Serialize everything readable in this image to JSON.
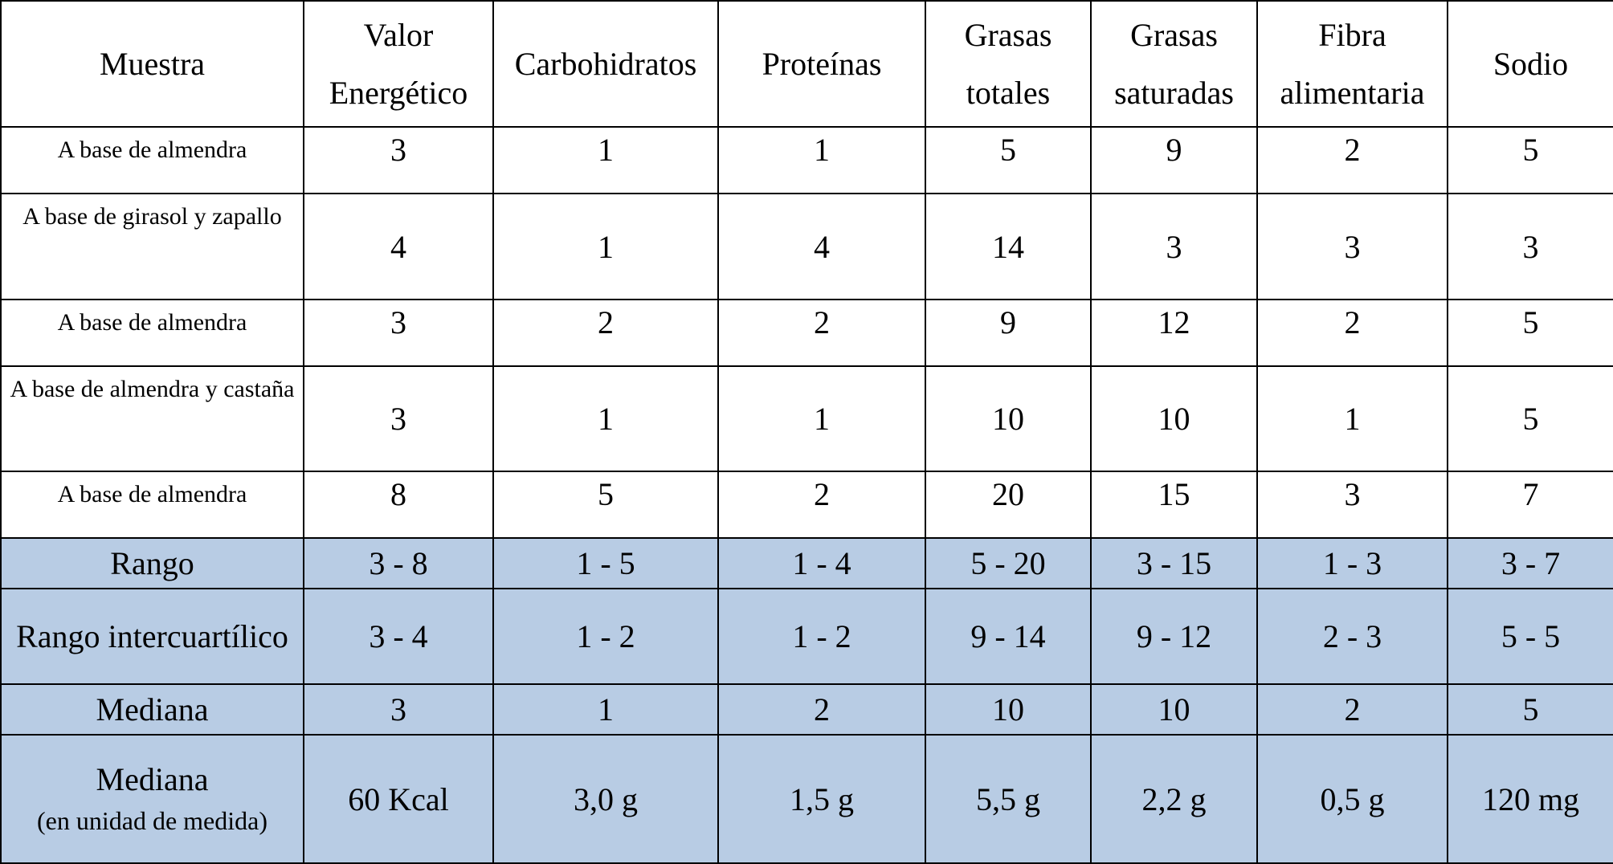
{
  "table": {
    "headers": [
      "Muestra",
      "Valor Energético",
      "Carbohidratos",
      "Proteínas",
      "Grasas totales",
      "Grasas saturadas",
      "Fibra alimentaria",
      "Sodio"
    ],
    "rows": [
      {
        "sample": "A base de almendra",
        "values": [
          "3",
          "1",
          "1",
          "5",
          "9",
          "2",
          "5"
        ]
      },
      {
        "sample": "A base de girasol y zapallo",
        "values": [
          "4",
          "1",
          "4",
          "14",
          "3",
          "3",
          "3"
        ]
      },
      {
        "sample": "A base de almendra",
        "values": [
          "3",
          "2",
          "2",
          "9",
          "12",
          "2",
          "5"
        ]
      },
      {
        "sample": "A base de almendra y castaña",
        "values": [
          "3",
          "1",
          "1",
          "10",
          "10",
          "1",
          "5"
        ]
      },
      {
        "sample": "A base de almendra",
        "values": [
          "8",
          "5",
          "2",
          "20",
          "15",
          "3",
          "7"
        ]
      }
    ],
    "summary": [
      {
        "label": "Rango",
        "values": [
          "3 - 8",
          "1 - 5",
          "1 - 4",
          "5 - 20",
          "3 - 15",
          "1 - 3",
          "3 - 7"
        ]
      },
      {
        "label": "Rango intercuartílico",
        "values": [
          "3 - 4",
          "1 - 2",
          "1 - 2",
          "9 - 14",
          "9 - 12",
          "2 - 3",
          "5 - 5"
        ]
      },
      {
        "label": "Mediana",
        "values": [
          "3",
          "1",
          "2",
          "10",
          "10",
          "2",
          "5"
        ]
      },
      {
        "label": "Mediana",
        "sublabel": "(en unidad de medida)",
        "values": [
          "60 Kcal",
          "3,0 g",
          "1,5 g",
          "5,5 g",
          "2,2 g",
          "0,5 g",
          "120 mg"
        ]
      }
    ],
    "colors": {
      "summary_bg": "#b8cce4",
      "border": "#000000"
    }
  }
}
